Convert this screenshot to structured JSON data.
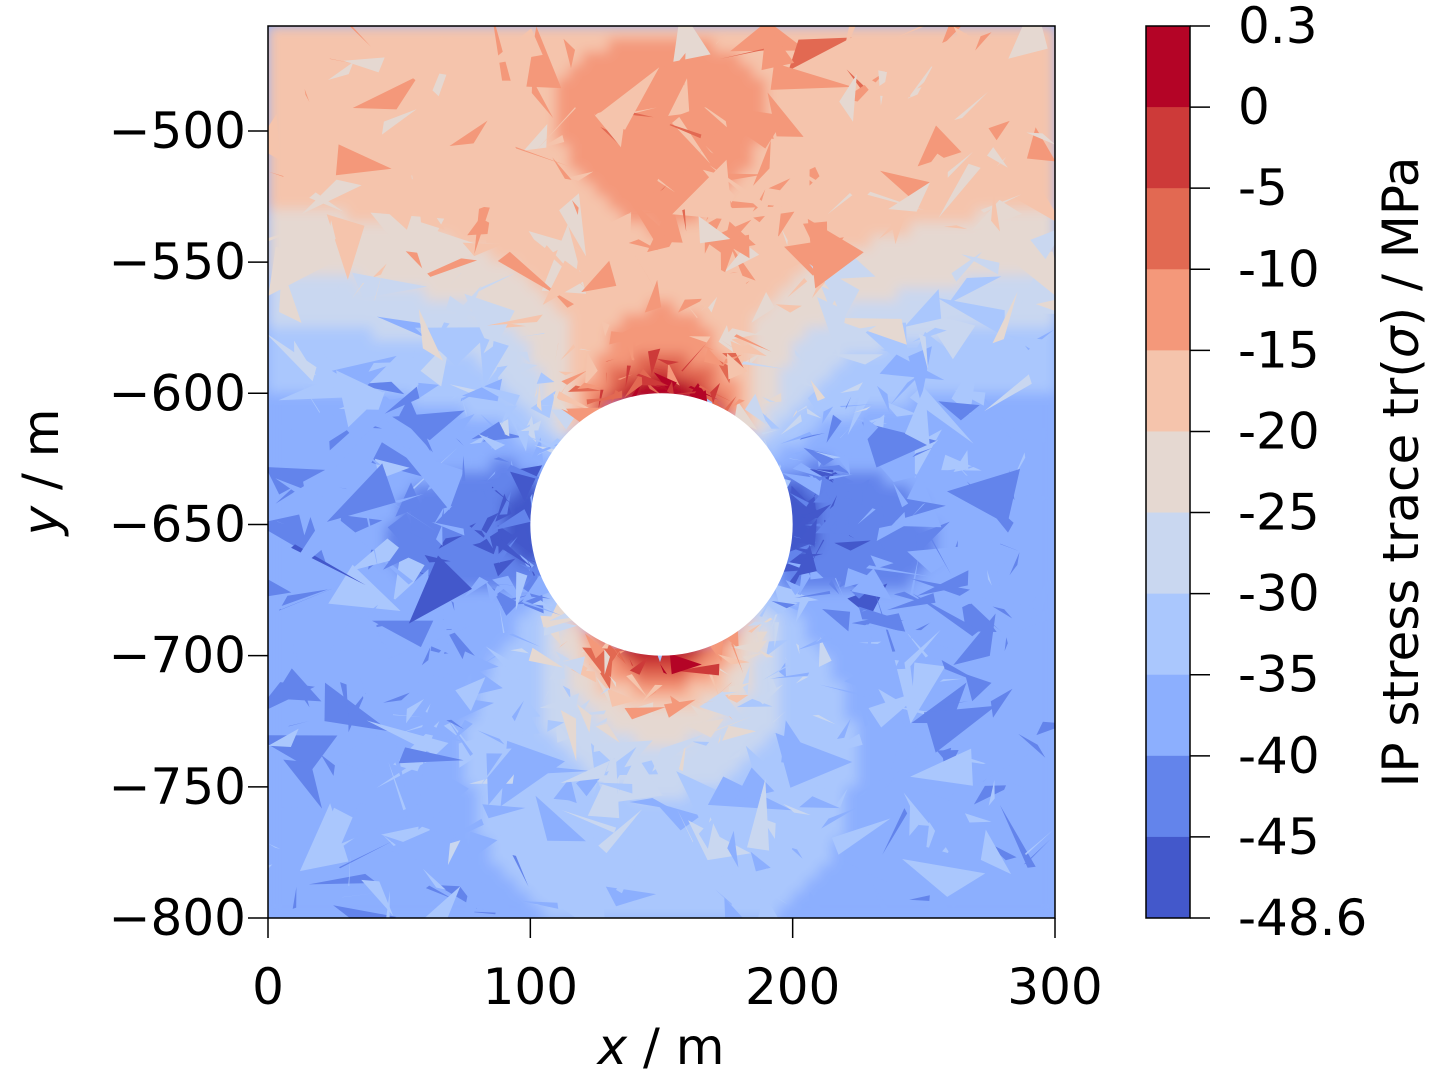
{
  "chart_data": {
    "type": "heatmap",
    "title": "",
    "xlabel_var": "x",
    "xlabel_unit": " / m",
    "ylabel_var": "y",
    "ylabel_unit": " / m",
    "xlim": [
      0,
      300
    ],
    "ylim": [
      -800,
      -460
    ],
    "x_ticks": [
      0,
      100,
      200,
      300
    ],
    "x_tick_labels": [
      "0",
      "100",
      "200",
      "300"
    ],
    "y_ticks": [
      -500,
      -550,
      -600,
      -650,
      -700,
      -750,
      -800
    ],
    "y_tick_labels": [
      "−500",
      "−550",
      "−600",
      "−650",
      "−700",
      "−750",
      "−800"
    ],
    "hole": {
      "center_x": 150,
      "center_y": -650,
      "radius": 50
    },
    "field_summary": "compressive stress concentration on left/right flanks of the circular opening (~-45 MPa), tensile/low-compression at crown and invert (~0 MPa), background ~-35 to -40 MPa at depth and ~-20 MPa near the top",
    "colorbar": {
      "label_prefix": "IP stress trace tr(",
      "label_symbol": "σ",
      "label_suffix": ") / MPa",
      "levels": [
        "0.3",
        "0",
        "-5",
        "-10",
        "-15",
        "-20",
        "-25",
        "-30",
        "-35",
        "-40",
        "-45",
        "-48.6"
      ],
      "level_values": [
        0.3,
        0,
        -5,
        -10,
        -15,
        -20,
        -25,
        -30,
        -35,
        -40,
        -45,
        -48.6
      ],
      "colors": [
        "#b40426",
        "#cd3a39",
        "#e26952",
        "#f4987a",
        "#f5c4ac",
        "#e5d8d1",
        "#c9d7f0",
        "#aac7fd",
        "#8caffe",
        "#6384eb",
        "#4358cb"
      ]
    },
    "grid": false,
    "legend": "colorbar-right"
  }
}
